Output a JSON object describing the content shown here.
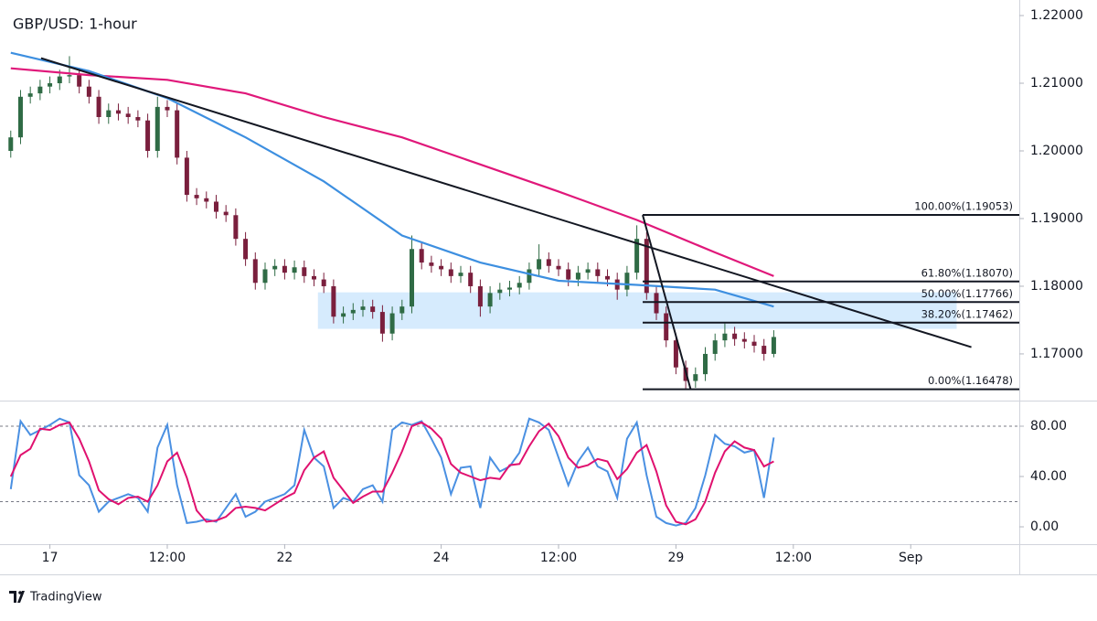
{
  "footer": {
    "brand": "TradingView"
  },
  "chart_data": [
    {
      "type": "candlestick",
      "title": "GBP/USD: 1-hour",
      "xlim": [
        -1.1,
        103.1
      ],
      "ylim": [
        1.1631,
        1.2223
      ],
      "yticks": [
        {
          "value": 1.17,
          "label": "1.17000"
        },
        {
          "value": 1.18,
          "label": "1.18000"
        },
        {
          "value": 1.19,
          "label": "1.19000"
        },
        {
          "value": 1.2,
          "label": "1.20000"
        },
        {
          "value": 1.21,
          "label": "1.21000"
        },
        {
          "value": 1.22,
          "label": "1.22000"
        }
      ],
      "up_color": "#2f6b45",
      "down_color": "#7a1f3d",
      "open": [
        1.2,
        1.202,
        1.208,
        1.2085,
        1.2095,
        1.21,
        1.211,
        1.2112,
        1.2095,
        1.208,
        1.205,
        1.206,
        1.2055,
        1.205,
        1.2045,
        1.2,
        1.2065,
        1.206,
        1.199,
        1.1935,
        1.193,
        1.1925,
        1.191,
        1.1905,
        1.187,
        1.184,
        1.1805,
        1.1825,
        1.183,
        1.182,
        1.1828,
        1.1815,
        1.181,
        1.18,
        1.1755,
        1.176,
        1.1765,
        1.177,
        1.1762,
        1.173,
        1.176,
        1.177,
        1.1855,
        1.1835,
        1.183,
        1.1825,
        1.1815,
        1.182,
        1.18,
        1.177,
        1.179,
        1.1795,
        1.1798,
        1.1805,
        1.1825,
        1.184,
        1.183,
        1.1825,
        1.181,
        1.182,
        1.1825,
        1.1815,
        1.181,
        1.1795,
        1.182,
        1.187,
        1.179,
        1.176,
        1.172,
        1.168,
        1.166,
        1.167,
        1.17,
        1.172,
        1.173,
        1.1722,
        1.1718,
        1.1712,
        1.17
      ],
      "high": [
        1.203,
        1.209,
        1.2095,
        1.2105,
        1.211,
        1.212,
        1.214,
        1.2122,
        1.2105,
        1.209,
        1.207,
        1.207,
        1.2065,
        1.206,
        1.2055,
        1.208,
        1.2075,
        1.207,
        1.2,
        1.1945,
        1.194,
        1.1935,
        1.192,
        1.1915,
        1.188,
        1.185,
        1.1835,
        1.184,
        1.184,
        1.1838,
        1.1838,
        1.1825,
        1.182,
        1.181,
        1.177,
        1.1775,
        1.178,
        1.178,
        1.1772,
        1.177,
        1.178,
        1.1875,
        1.1865,
        1.1845,
        1.184,
        1.1835,
        1.183,
        1.183,
        1.181,
        1.18,
        1.1805,
        1.1808,
        1.1815,
        1.1835,
        1.1862,
        1.185,
        1.184,
        1.1835,
        1.183,
        1.1835,
        1.1835,
        1.1825,
        1.182,
        1.183,
        1.189,
        1.188,
        1.18,
        1.177,
        1.173,
        1.169,
        1.168,
        1.171,
        1.173,
        1.1745,
        1.174,
        1.1732,
        1.1728,
        1.1722,
        1.1735
      ],
      "low": [
        1.199,
        1.201,
        1.207,
        1.2075,
        1.2085,
        1.209,
        1.21,
        1.2085,
        1.207,
        1.204,
        1.204,
        1.2045,
        1.204,
        1.2035,
        1.199,
        1.199,
        1.205,
        1.198,
        1.1925,
        1.192,
        1.1915,
        1.19,
        1.1895,
        1.186,
        1.183,
        1.1795,
        1.1795,
        1.1815,
        1.181,
        1.181,
        1.1805,
        1.18,
        1.179,
        1.1745,
        1.1745,
        1.175,
        1.1755,
        1.1752,
        1.1718,
        1.172,
        1.175,
        1.176,
        1.1825,
        1.182,
        1.1815,
        1.1805,
        1.1805,
        1.179,
        1.1755,
        1.176,
        1.178,
        1.1785,
        1.1788,
        1.1795,
        1.1815,
        1.182,
        1.1815,
        1.18,
        1.18,
        1.181,
        1.1805,
        1.18,
        1.178,
        1.1785,
        1.181,
        1.178,
        1.175,
        1.171,
        1.167,
        1.1648,
        1.165,
        1.166,
        1.169,
        1.171,
        1.1712,
        1.1708,
        1.1702,
        1.169,
        1.1695
      ],
      "close": [
        1.202,
        1.208,
        1.2085,
        1.2095,
        1.21,
        1.211,
        1.2112,
        1.2095,
        1.208,
        1.205,
        1.206,
        1.2055,
        1.205,
        1.2045,
        1.2,
        1.2065,
        1.206,
        1.199,
        1.1935,
        1.193,
        1.1925,
        1.191,
        1.1905,
        1.187,
        1.184,
        1.1805,
        1.1825,
        1.183,
        1.182,
        1.1828,
        1.1815,
        1.181,
        1.18,
        1.1755,
        1.176,
        1.1765,
        1.177,
        1.1762,
        1.173,
        1.176,
        1.177,
        1.1855,
        1.1835,
        1.183,
        1.1825,
        1.1815,
        1.182,
        1.18,
        1.177,
        1.179,
        1.1795,
        1.1798,
        1.1805,
        1.1825,
        1.184,
        1.183,
        1.1825,
        1.181,
        1.182,
        1.1825,
        1.1815,
        1.181,
        1.1795,
        1.182,
        1.187,
        1.179,
        1.176,
        1.172,
        1.168,
        1.166,
        1.167,
        1.17,
        1.172,
        1.173,
        1.1722,
        1.1718,
        1.1712,
        1.17,
        1.1725
      ],
      "overlays": [
        {
          "color": "#e0187a",
          "x": [
            0,
            8,
            16,
            24,
            32,
            40,
            48,
            56,
            64,
            72,
            78
          ],
          "values": [
            1.2122,
            1.2112,
            1.2105,
            1.2085,
            1.205,
            1.202,
            1.198,
            1.194,
            1.1898,
            1.185,
            1.1815
          ]
        },
        {
          "color": "#3d8fe0",
          "x": [
            0,
            8,
            16,
            24,
            32,
            40,
            48,
            56,
            64,
            72,
            78
          ],
          "values": [
            1.2145,
            1.2118,
            1.2078,
            1.202,
            1.1955,
            1.1875,
            1.1835,
            1.1808,
            1.1802,
            1.1795,
            1.177
          ]
        }
      ],
      "trendline": {
        "color": "#131722",
        "x": [
          3.1,
          98.2
        ],
        "values": [
          1.2137,
          1.171
        ]
      },
      "zone": {
        "color": "#bbdefb",
        "x": [
          31.4,
          96.7
        ],
        "y": [
          1.1737,
          1.1791
        ]
      },
      "fib_x": [
        64.6,
        69.5
      ],
      "fib": [
        {
          "value": 1.19053,
          "label": "100.00%(1.19053)"
        },
        {
          "value": 1.1807,
          "label": "61.80%(1.18070)"
        },
        {
          "value": 1.17766,
          "label": "50.00%(1.17766)"
        },
        {
          "value": 1.17462,
          "label": "38.20%(1.17462)"
        },
        {
          "value": 1.16478,
          "label": "0.00%(1.16478)"
        }
      ]
    },
    {
      "type": "line",
      "xlim": [
        -1.1,
        103.1
      ],
      "ylim": [
        -13.8,
        98.9
      ],
      "yticks": [
        {
          "value": 0,
          "label": "0.00"
        },
        {
          "value": 40,
          "label": "40.00"
        },
        {
          "value": 80,
          "label": "80.00"
        }
      ],
      "bands": [
        20,
        80
      ],
      "xticks": [
        {
          "value": 4,
          "label": "17"
        },
        {
          "value": 16,
          "label": "12:00"
        },
        {
          "value": 28,
          "label": "22"
        },
        {
          "value": 44,
          "label": "24"
        },
        {
          "value": 56,
          "label": "12:00"
        },
        {
          "value": 68,
          "label": "29"
        },
        {
          "value": 80,
          "label": "12:00"
        },
        {
          "value": 92,
          "label": "Sep"
        }
      ],
      "series": [
        {
          "color": "#4a90e2",
          "values": [
            30,
            84,
            73,
            77,
            81,
            86,
            83,
            41,
            33,
            12,
            20,
            23,
            26,
            23,
            12,
            63,
            81,
            33,
            3,
            4,
            6,
            4,
            15,
            26,
            8,
            12,
            20,
            23,
            26,
            33,
            77,
            55,
            48,
            15,
            23,
            20,
            30,
            33,
            20,
            77,
            83,
            81,
            84,
            70,
            55,
            26,
            47,
            48,
            15,
            55,
            44,
            48,
            59,
            86,
            83,
            77,
            55,
            33,
            52,
            63,
            48,
            44,
            23,
            70,
            83,
            41,
            8,
            3,
            1,
            3,
            15,
            41,
            73,
            66,
            64,
            59,
            61,
            23,
            71
          ]
        },
        {
          "color": "#e0116f",
          "values": [
            40,
            57,
            62,
            78,
            77,
            81,
            83,
            70,
            52,
            29,
            22,
            18,
            23,
            24,
            20,
            33,
            52,
            59,
            39,
            13,
            4,
            5,
            8,
            15,
            16,
            15,
            13,
            18,
            23,
            27,
            45,
            55,
            60,
            39,
            29,
            19,
            24,
            28,
            28,
            43,
            60,
            80,
            83,
            78,
            70,
            50,
            43,
            40,
            37,
            39,
            38,
            49,
            50,
            64,
            76,
            82,
            72,
            55,
            47,
            49,
            54,
            52,
            38,
            46,
            59,
            65,
            44,
            17,
            4,
            2,
            6,
            20,
            43,
            60,
            68,
            63,
            61,
            48,
            52
          ]
        }
      ]
    }
  ]
}
